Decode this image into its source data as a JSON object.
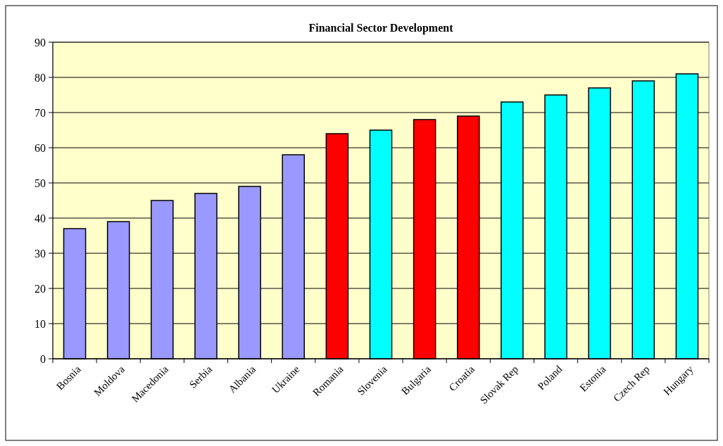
{
  "chart_data": {
    "type": "bar",
    "title": "Financial Sector Development",
    "categories": [
      "Bosnia",
      "Moldova",
      "Macedonia",
      "Serbia",
      "Albania",
      "Ukraine",
      "Romania",
      "Slovenia",
      "Bulgaria",
      "Croatia",
      "Slovak Rep",
      "Poland",
      "Estonia",
      "Czech Rep",
      "Hungary"
    ],
    "values": [
      37,
      39,
      45,
      47,
      49,
      58,
      64,
      65,
      68,
      69,
      73,
      75,
      77,
      79,
      81
    ],
    "colors": [
      "#9999ff",
      "#9999ff",
      "#9999ff",
      "#9999ff",
      "#9999ff",
      "#9999ff",
      "#ff0000",
      "#00ffff",
      "#ff0000",
      "#ff0000",
      "#00ffff",
      "#00ffff",
      "#00ffff",
      "#00ffff",
      "#00ffff"
    ],
    "ylim": [
      0,
      90
    ],
    "yticks": [
      0,
      10,
      20,
      30,
      40,
      50,
      60,
      70,
      80,
      90
    ],
    "grid": "y"
  }
}
